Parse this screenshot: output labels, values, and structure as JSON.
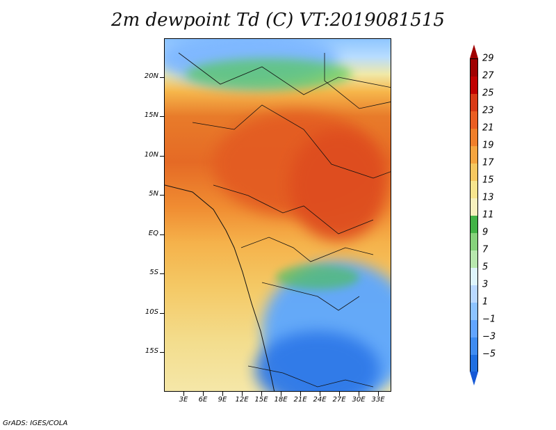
{
  "title": "2m dewpoint Td (C) VT:2019081515",
  "map": {
    "x_axis_ticks": [
      "3E",
      "6E",
      "9E",
      "12E",
      "15E",
      "18E",
      "21E",
      "24E",
      "27E",
      "30E",
      "33E"
    ],
    "y_axis_ticks": [
      "20N",
      "15N",
      "10N",
      "5N",
      "EQ",
      "5S",
      "10S",
      "15S"
    ]
  },
  "legend": {
    "levels": [
      "29",
      "27",
      "25",
      "23",
      "21",
      "19",
      "17",
      "15",
      "13",
      "11",
      "9",
      "7",
      "5",
      "3",
      "1",
      "−1",
      "−3",
      "−5"
    ],
    "colors": [
      "#a00000",
      "#c00000",
      "#d93a16",
      "#eb5e22",
      "#f07f2a",
      "#f5a53f",
      "#f6c860",
      "#f7e58e",
      "#f7f1be",
      "#42b346",
      "#86d27c",
      "#b8e8ae",
      "#def4fb",
      "#b9d8ff",
      "#8dc3ff",
      "#62a5ff",
      "#3f8cf1",
      "#1f6fe1"
    ]
  },
  "footer": "GrADS: IGES/COLA"
}
